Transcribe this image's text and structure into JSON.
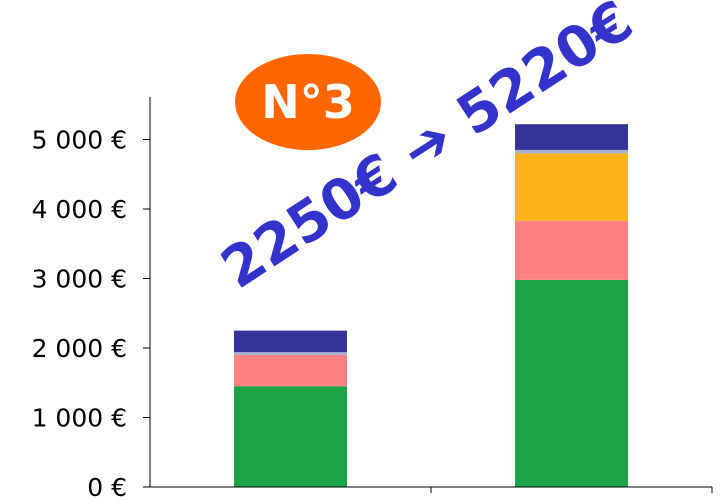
{
  "chart_data": {
    "type": "bar",
    "stacked": true,
    "categories": [
      "",
      ""
    ],
    "series": [
      {
        "color": "#1ba345",
        "values": [
          1450,
          2980
        ]
      },
      {
        "color": "#ff8080",
        "values": [
          450,
          850
        ]
      },
      {
        "color": "#ffb31a",
        "values": [
          0,
          970
        ]
      },
      {
        "color": "#aab0d0",
        "values": [
          40,
          50
        ]
      },
      {
        "color": "#333399",
        "values": [
          310,
          370
        ]
      }
    ],
    "ylim": [
      0,
      5600
    ],
    "yticks": [
      0,
      1000,
      2000,
      3000,
      4000,
      5000
    ],
    "ytick_labels": [
      "0 €",
      "1 000 €",
      "2 000 €",
      "3 000 €",
      "4 000 €",
      "5 000 €"
    ],
    "grid": false,
    "badge": {
      "text": "N°3",
      "color": "#ff6600"
    },
    "annotation": {
      "from": "2250€",
      "to": "5220€",
      "color": "#3333cc"
    }
  }
}
